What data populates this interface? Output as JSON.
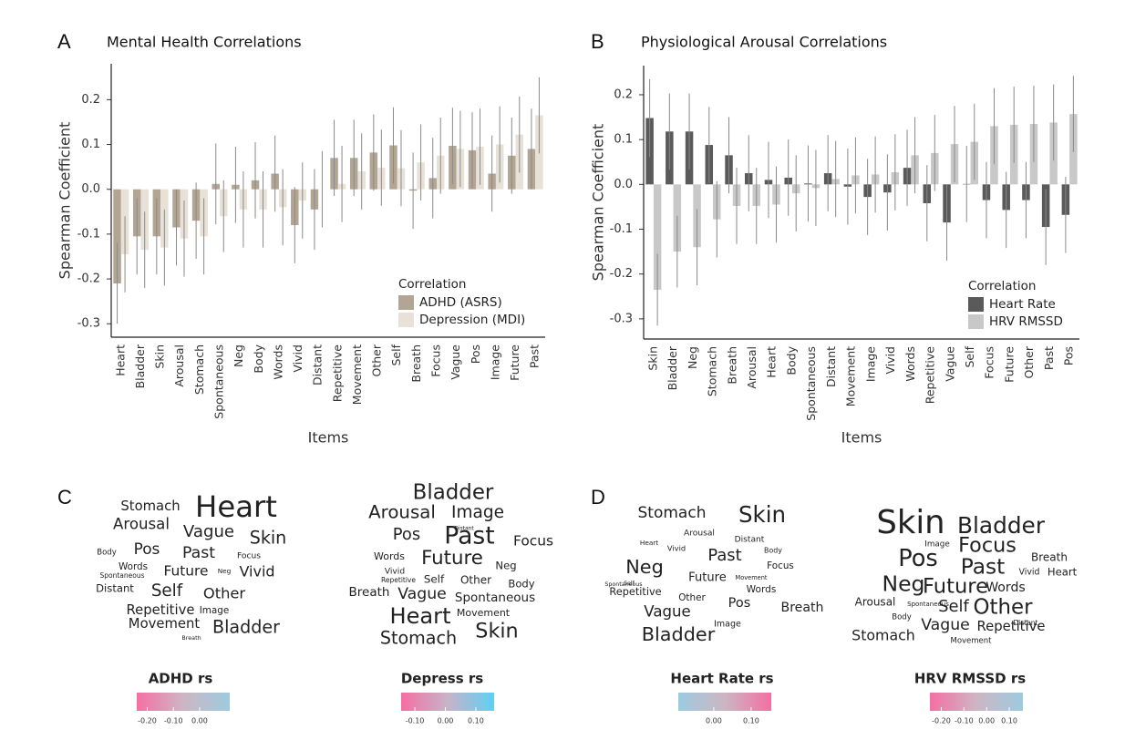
{
  "chart_data": [
    {
      "type": "bar",
      "panel": "A",
      "title": "Mental Health Correlations",
      "x_label": "Items",
      "y_label": "Spearman Coefficient",
      "categories": [
        "Heart",
        "Bladder",
        "Skin",
        "Arousal",
        "Stomach",
        "Spontaneous",
        "Neg",
        "Body",
        "Words",
        "Vivid",
        "Distant",
        "Repetitive",
        "Movement",
        "Other",
        "Self",
        "Breath",
        "Focus",
        "Vague",
        "Pos",
        "Image",
        "Future",
        "Past"
      ],
      "series": [
        {
          "name": "ADHD (ASRS)",
          "color": "#b3a593",
          "values": [
            -0.21,
            -0.105,
            -0.105,
            -0.085,
            -0.07,
            0.012,
            0.01,
            0.02,
            0.035,
            -0.08,
            -0.045,
            0.07,
            0.07,
            0.082,
            0.098,
            -0.003,
            0.025,
            0.097,
            0.087,
            0.035,
            0.075,
            0.09
          ],
          "errors": [
            0.09,
            0.085,
            0.085,
            0.085,
            0.085,
            0.09,
            0.085,
            0.085,
            0.085,
            0.085,
            0.09,
            0.085,
            0.085,
            0.085,
            0.085,
            0.085,
            0.09,
            0.085,
            0.085,
            0.085,
            0.085,
            0.09
          ]
        },
        {
          "name": "Depression (MDI)",
          "color": "#e8e1d7",
          "values": [
            -0.145,
            -0.135,
            -0.13,
            -0.11,
            -0.105,
            -0.06,
            -0.045,
            -0.045,
            -0.04,
            -0.025,
            0.0,
            0.012,
            0.04,
            0.048,
            0.047,
            0.06,
            0.075,
            0.09,
            0.095,
            0.1,
            0.122,
            0.165
          ],
          "errors": [
            0.085,
            0.085,
            0.085,
            0.085,
            0.085,
            0.08,
            0.085,
            0.085,
            0.085,
            0.085,
            0.085,
            0.085,
            0.085,
            0.085,
            0.085,
            0.085,
            0.085,
            0.085,
            0.085,
            0.085,
            0.085,
            0.085
          ]
        }
      ],
      "ylim": [
        -0.33,
        0.28
      ],
      "yticks": [
        -0.3,
        -0.2,
        -0.1,
        {
          "value": 0,
          "label": "0.0"
        },
        0.1,
        0.2
      ],
      "grid": false,
      "legend": "bottom-right",
      "legend_title": "Correlation"
    },
    {
      "type": "bar",
      "panel": "B",
      "title": "Physiological Arousal Correlations",
      "x_label": "Items",
      "y_label": "Spearman Coefficient",
      "categories": [
        "Skin",
        "Bladder",
        "Neg",
        "Stomach",
        "Breath",
        "Arousal",
        "Heart",
        "Body",
        "Spontaneous",
        "Distant",
        "Movement",
        "Image",
        "Vivid",
        "Words",
        "Repetitive",
        "Vague",
        "Self",
        "Focus",
        "Future",
        "Other",
        "Past",
        "Pos"
      ],
      "series": [
        {
          "name": "Heart Rate",
          "color": "#5a5a5a",
          "values": [
            0.148,
            0.118,
            0.118,
            0.088,
            0.065,
            0.025,
            0.01,
            0.015,
            0.002,
            0.025,
            -0.005,
            -0.028,
            -0.018,
            0.037,
            -0.042,
            -0.085,
            0.001,
            -0.035,
            -0.057,
            -0.035,
            -0.095,
            -0.068
          ],
          "errors": [
            0.087,
            0.085,
            0.085,
            0.085,
            0.085,
            0.085,
            0.085,
            0.085,
            0.085,
            0.085,
            0.085,
            0.085,
            0.085,
            0.085,
            0.085,
            0.085,
            0.085,
            0.085,
            0.085,
            0.085,
            0.085,
            0.085
          ]
        },
        {
          "name": "HRV RMSSD",
          "color": "#c8c8c8",
          "values": [
            -0.235,
            -0.15,
            -0.14,
            -0.078,
            -0.048,
            -0.048,
            -0.045,
            -0.02,
            -0.008,
            0.012,
            0.02,
            0.022,
            0.027,
            0.065,
            0.07,
            0.09,
            0.095,
            0.13,
            0.133,
            0.135,
            0.138,
            0.157
          ],
          "errors": [
            0.08,
            0.08,
            0.085,
            0.085,
            0.085,
            0.085,
            0.085,
            0.085,
            0.085,
            0.085,
            0.085,
            0.085,
            0.085,
            0.085,
            0.085,
            0.085,
            0.085,
            0.085,
            0.085,
            0.085,
            0.085,
            0.085
          ]
        }
      ],
      "ylim": [
        -0.345,
        0.265
      ],
      "yticks": [
        -0.3,
        -0.2,
        -0.1,
        {
          "value": 0,
          "label": "0.0"
        },
        0.1,
        0.2
      ],
      "grid": false,
      "legend": "bottom-right",
      "legend_title": "Correlation"
    },
    {
      "type": "wordcloud",
      "panel": "C",
      "title": "ADHD rs",
      "xlim": [
        -0.24,
        0.115
      ],
      "xticks": [
        {
          "value": -0.2,
          "label": "-0.20"
        },
        {
          "value": -0.1,
          "label": "-0.10"
        },
        {
          "value": 0,
          "label": "0.00"
        }
      ],
      "colors": [
        "#f46fa3",
        "#cdb6c3",
        "#9ccbe0"
      ]
    },
    {
      "type": "wordcloud",
      "title": "Depress rs",
      "xlim": [
        -0.145,
        0.16
      ],
      "xticks": [
        {
          "value": -0.1,
          "label": "-0.10"
        },
        {
          "value": 0,
          "label": "0.00"
        },
        {
          "value": 0.1,
          "label": "0.10"
        }
      ],
      "colors": [
        "#f46fa3",
        "#c6b4c8",
        "#5fd0f5"
      ]
    },
    {
      "type": "wordcloud",
      "panel": "D",
      "title": "Heart Rate rs",
      "xlim": [
        -0.095,
        0.154
      ],
      "xticks": [
        {
          "value": 0,
          "label": "0.00"
        },
        {
          "value": 0.1,
          "label": "0.10"
        }
      ],
      "colors": [
        "#9ccbe0",
        "#cdb6c3",
        "#f46fa3"
      ]
    },
    {
      "type": "wordcloud",
      "title": "HRV RMSSD rs",
      "xlim": [
        -0.25,
        0.16
      ],
      "xticks": [
        {
          "value": -0.2,
          "label": "-0.20"
        },
        {
          "value": -0.1,
          "label": "-0.10"
        },
        {
          "value": 0,
          "label": "0.00"
        },
        {
          "value": 0.1,
          "label": "0.10"
        }
      ],
      "colors": [
        "#f46fa3",
        "#cdb6c3",
        "#9ccbe0"
      ]
    }
  ]
}
